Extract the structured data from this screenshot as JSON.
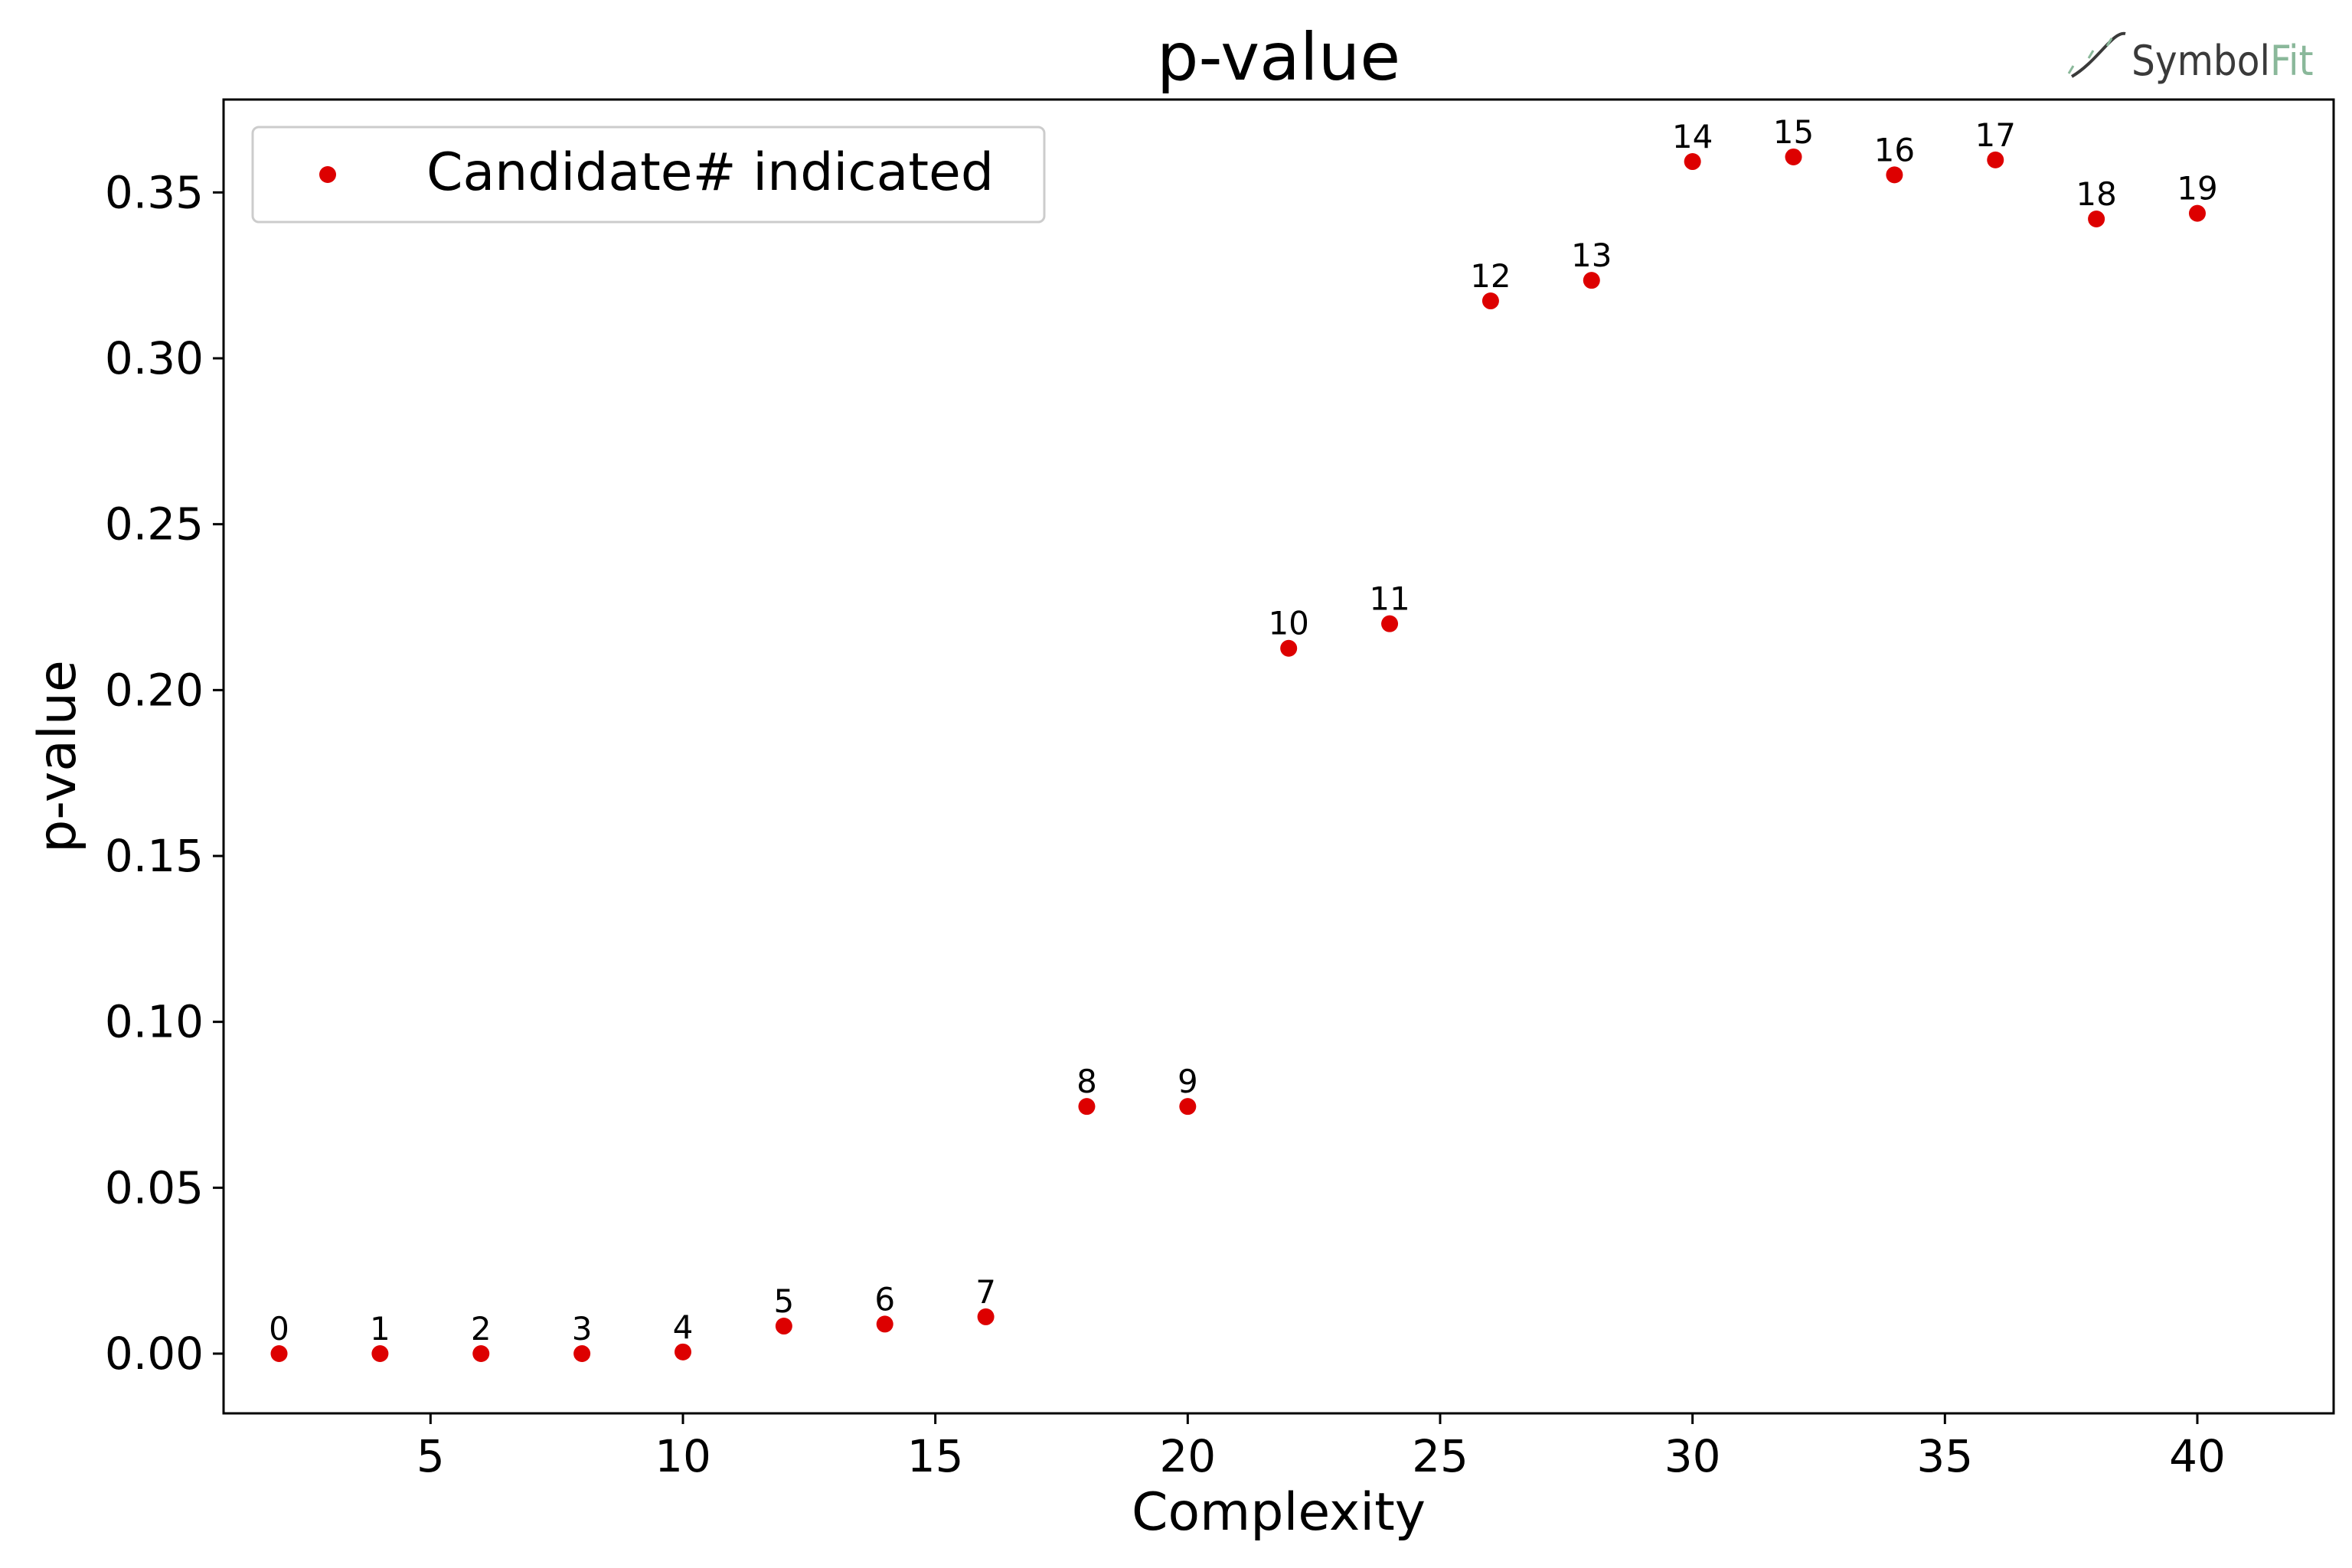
{
  "chart_data": {
    "type": "scatter",
    "title": "p-value",
    "xlabel": "Complexity",
    "ylabel": "p-value",
    "xlim": [
      0.9,
      42.7
    ],
    "ylim": [
      -0.018,
      0.378
    ],
    "xticks": [
      5,
      10,
      15,
      20,
      25,
      30,
      35,
      40
    ],
    "yticks": [
      0.0,
      0.05,
      0.1,
      0.15,
      0.2,
      0.25,
      0.3,
      0.35
    ],
    "xtick_labels": [
      "5",
      "10",
      "15",
      "20",
      "25",
      "30",
      "35",
      "40"
    ],
    "ytick_labels": [
      "0.00",
      "0.05",
      "0.10",
      "0.15",
      "0.20",
      "0.25",
      "0.30",
      "0.35"
    ],
    "legend": {
      "label": "Candidate# indicated",
      "position": "upper-left"
    },
    "marker_color": "#dd0000",
    "series": [
      {
        "name": "Candidate# indicated",
        "points": [
          {
            "x": 2,
            "y": 0.0,
            "label": "0"
          },
          {
            "x": 4,
            "y": 0.0,
            "label": "1"
          },
          {
            "x": 6,
            "y": 0.0,
            "label": "2"
          },
          {
            "x": 8,
            "y": 0.0,
            "label": "3"
          },
          {
            "x": 10,
            "y": 0.0005,
            "label": "4"
          },
          {
            "x": 12,
            "y": 0.0083,
            "label": "5"
          },
          {
            "x": 14,
            "y": 0.0089,
            "label": "6"
          },
          {
            "x": 16,
            "y": 0.0111,
            "label": "7"
          },
          {
            "x": 18,
            "y": 0.0745,
            "label": "8"
          },
          {
            "x": 20,
            "y": 0.0745,
            "label": "9"
          },
          {
            "x": 22,
            "y": 0.2126,
            "label": "10"
          },
          {
            "x": 24,
            "y": 0.22,
            "label": "11"
          },
          {
            "x": 26,
            "y": 0.3173,
            "label": "12"
          },
          {
            "x": 28,
            "y": 0.3235,
            "label": "13"
          },
          {
            "x": 30,
            "y": 0.3593,
            "label": "14"
          },
          {
            "x": 32,
            "y": 0.3607,
            "label": "15"
          },
          {
            "x": 34,
            "y": 0.3553,
            "label": "16"
          },
          {
            "x": 36,
            "y": 0.3598,
            "label": "17"
          },
          {
            "x": 38,
            "y": 0.342,
            "label": "18"
          },
          {
            "x": 40,
            "y": 0.3437,
            "label": "19"
          }
        ]
      }
    ]
  },
  "logo": {
    "text_dark": "Symbol",
    "text_light": "Fit",
    "dark_color": "#3a3a3a",
    "light_color": "#8ab89a"
  }
}
